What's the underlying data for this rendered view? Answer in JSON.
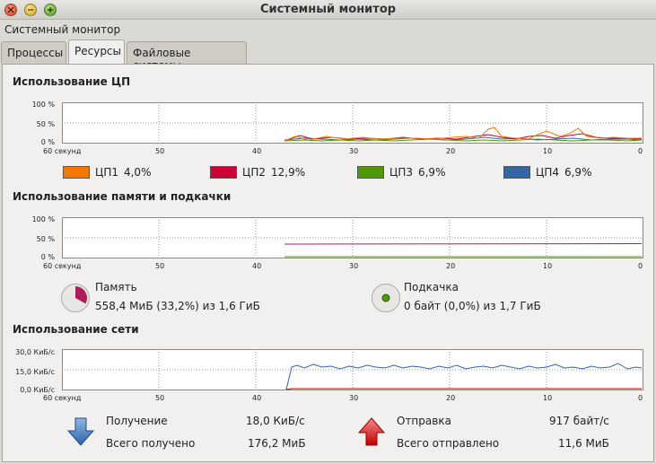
{
  "window": {
    "title": "Системный монитор"
  },
  "menubar": {
    "item": "Системный монитор"
  },
  "tabs": [
    {
      "label": "Процессы",
      "active": false
    },
    {
      "label": "Ресурсы",
      "active": true
    },
    {
      "label": "Файловые системы",
      "active": false
    }
  ],
  "time_axis": {
    "labels": [
      "60 секунд",
      "50",
      "40",
      "30",
      "20",
      "10",
      "0"
    ]
  },
  "cpu": {
    "title": "Использование ЦП",
    "y_labels": [
      "100 %",
      "50 %",
      "0 %"
    ],
    "cores": [
      {
        "name": "ЦП1",
        "value": "4,0%",
        "color": "#f57900"
      },
      {
        "name": "ЦП2",
        "value": "12,9%",
        "color": "#cc0033"
      },
      {
        "name": "ЦП3",
        "value": "6,9%",
        "color": "#4e9a06"
      },
      {
        "name": "ЦП4",
        "value": "6,9%",
        "color": "#3465a4"
      }
    ]
  },
  "memory": {
    "title": "Использование памяти и подкачки",
    "y_labels": [
      "100 %",
      "50 %",
      "0 %"
    ],
    "mem": {
      "label": "Память",
      "value": "558,4 МиБ (33,2%) из 1,6 ГиБ",
      "fraction": 0.332,
      "color": "#ad1d5d"
    },
    "swap": {
      "label": "Подкачка",
      "value": "0 байт (0,0%) из 1,7 ГиБ",
      "fraction": 0.0,
      "color": "#4e9a06"
    }
  },
  "network": {
    "title": "Использование сети",
    "y_labels": [
      "30,0 КиБ/с",
      "15,0 КиБ/с",
      "0,0 КиБ/с"
    ],
    "receive": {
      "label": "Получение",
      "rate": "18,0 КиБ/с",
      "total_label": "Всего получено",
      "total": "176,2 МиБ",
      "color": "#3465a4"
    },
    "send": {
      "label": "Отправка",
      "rate": "917 байт/с",
      "total_label": "Всего отправлено",
      "total": "11,6 МиБ",
      "color": "#cc0000"
    }
  }
}
